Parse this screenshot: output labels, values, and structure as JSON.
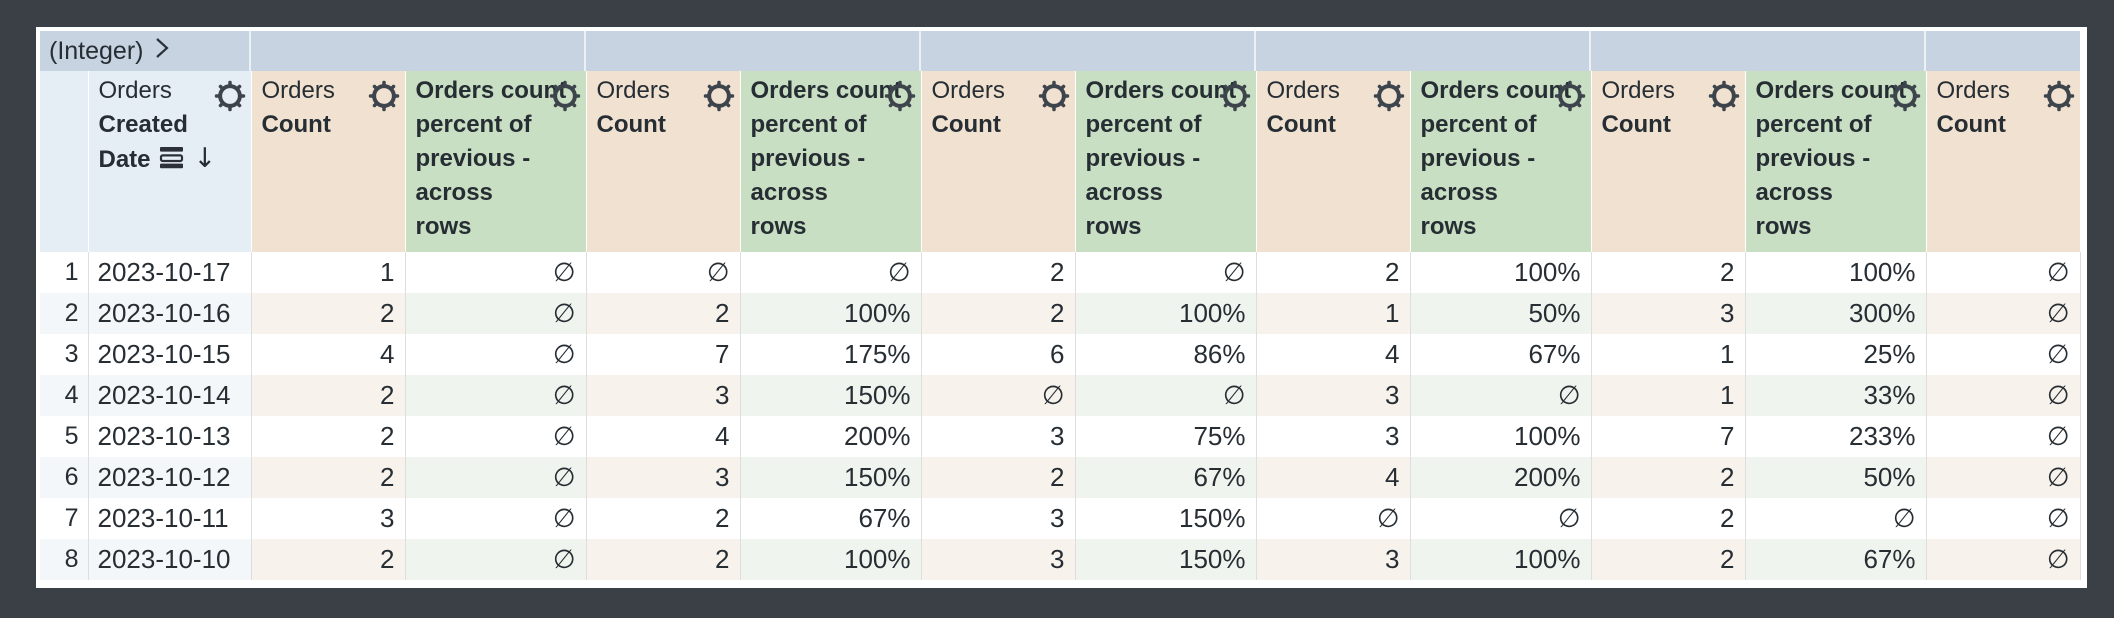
{
  "pivot_bar": {
    "label": "(Integer)",
    "value_sections": 6
  },
  "table": {
    "column_types": [
      "rownum",
      "dimension",
      "count",
      "percent",
      "count",
      "percent",
      "count",
      "percent",
      "count",
      "percent",
      "count",
      "percent",
      "count"
    ],
    "headers": {
      "dimension": {
        "view": "Orders",
        "field_lines": [
          "Created",
          "Date"
        ],
        "sorted_desc": true
      },
      "count": {
        "view": "Orders",
        "field_lines": [
          "Count"
        ]
      },
      "percent": {
        "field_lines": [
          "Orders count",
          "percent of",
          "previous -",
          "across",
          "rows"
        ]
      }
    },
    "rows": [
      {
        "index": "1",
        "date": "2023-10-17",
        "values": [
          "1",
          "∅",
          "∅",
          "∅",
          "2",
          "∅",
          "2",
          "100%",
          "2",
          "100%",
          "∅"
        ]
      },
      {
        "index": "2",
        "date": "2023-10-16",
        "values": [
          "2",
          "∅",
          "2",
          "100%",
          "2",
          "100%",
          "1",
          "50%",
          "3",
          "300%",
          "∅"
        ]
      },
      {
        "index": "3",
        "date": "2023-10-15",
        "values": [
          "4",
          "∅",
          "7",
          "175%",
          "6",
          "86%",
          "4",
          "67%",
          "1",
          "25%",
          "∅"
        ]
      },
      {
        "index": "4",
        "date": "2023-10-14",
        "values": [
          "2",
          "∅",
          "3",
          "150%",
          "∅",
          "∅",
          "3",
          "∅",
          "1",
          "33%",
          "∅"
        ]
      },
      {
        "index": "5",
        "date": "2023-10-13",
        "values": [
          "2",
          "∅",
          "4",
          "200%",
          "3",
          "75%",
          "3",
          "100%",
          "7",
          "233%",
          "∅"
        ]
      },
      {
        "index": "6",
        "date": "2023-10-12",
        "values": [
          "2",
          "∅",
          "3",
          "150%",
          "2",
          "67%",
          "4",
          "200%",
          "2",
          "50%",
          "∅"
        ]
      },
      {
        "index": "7",
        "date": "2023-10-11",
        "values": [
          "3",
          "∅",
          "2",
          "67%",
          "3",
          "150%",
          "∅",
          "∅",
          "2",
          "∅",
          "∅"
        ]
      },
      {
        "index": "8",
        "date": "2023-10-10",
        "values": [
          "2",
          "∅",
          "2",
          "100%",
          "3",
          "150%",
          "3",
          "100%",
          "2",
          "67%",
          "∅"
        ]
      }
    ],
    "null_symbol": "∅"
  },
  "icons": {
    "gear": "gear-icon",
    "chevron_right": "chevron-right-icon",
    "sort_bars": "sort-rows-icon",
    "sort_arrow_down": "↓"
  },
  "colors": {
    "frame": "#3b4046",
    "panel": "#ffffff",
    "topbar": "#c7d3e1",
    "hdr-blue": "#e6eef5",
    "hdr-tan": "#f0e1d1",
    "hdr-green": "#c9dfc4",
    "tint-blue": "#f4f7fa",
    "tint-tan": "#f8f2ec",
    "tint-green": "#eff5ee",
    "col-border": "#dedede",
    "text": "#262d33"
  }
}
